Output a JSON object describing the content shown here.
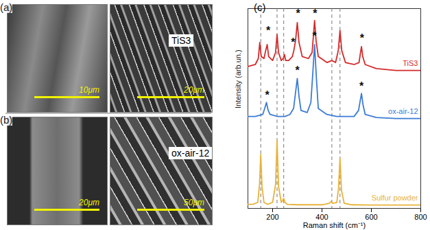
{
  "panels": [
    {
      "label": "(a)",
      "images": [
        {
          "scale_bar": "10μm"
        },
        {
          "scale_bar": "20μm",
          "caption": "TiS3"
        }
      ]
    },
    {
      "label": "(b)",
      "images": [
        {
          "scale_bar": "20μm"
        },
        {
          "scale_bar": "50μm",
          "caption": "ox-air-12"
        }
      ]
    }
  ],
  "chart_data": {
    "type": "line",
    "panel_label": "(c)",
    "x_label": "Raman shift (cm⁻¹)",
    "y_label": "Intensity (arb.un.)",
    "xlim": [
      100,
      800
    ],
    "xticks": [
      200,
      400,
      600,
      800
    ],
    "ylim": [
      0,
      10
    ],
    "yticks": [],
    "tick_labels": "x",
    "grid": false,
    "reference_lines": {
      "x": [
        152,
        218,
        245,
        440,
        473
      ],
      "line_style": "dashed"
    },
    "series": [
      {
        "name": "TiS3",
        "color": "#d42a2a",
        "x": [
          100,
          130,
          142,
          148,
          154,
          165,
          172,
          178,
          184,
          200,
          212,
          218,
          224,
          235,
          243,
          248,
          253,
          265,
          280,
          286,
          293,
          300,
          307,
          320,
          345,
          360,
          365,
          370,
          376,
          385,
          420,
          440,
          455,
          466,
          473,
          480,
          495,
          530,
          550,
          556,
          560,
          565,
          575,
          620,
          700,
          800
        ],
        "values": [
          7.1,
          7.2,
          7.5,
          8.3,
          7.6,
          7.5,
          7.9,
          8.2,
          7.6,
          7.4,
          7.8,
          8.7,
          7.8,
          7.4,
          7.5,
          7.7,
          7.4,
          7.4,
          7.6,
          7.9,
          8.4,
          9.3,
          8.3,
          7.6,
          7.5,
          7.8,
          8.6,
          9.4,
          8.4,
          7.6,
          7.3,
          7.4,
          7.3,
          7.9,
          8.9,
          7.9,
          7.3,
          7.2,
          7.3,
          7.8,
          8.1,
          7.6,
          7.2,
          7.0,
          6.9,
          6.9
        ],
        "annotations": [
          {
            "text": "*",
            "x": 182,
            "y": 8.9
          },
          {
            "text": "*",
            "x": 283,
            "y": 8.3
          },
          {
            "text": "*",
            "x": 303,
            "y": 9.75
          },
          {
            "text": "*",
            "x": 372,
            "y": 9.75
          },
          {
            "text": "*",
            "x": 562,
            "y": 8.5
          }
        ]
      },
      {
        "name": "ox-air-12",
        "color": "#3b7bd6",
        "x": [
          100,
          130,
          160,
          168,
          175,
          182,
          190,
          220,
          250,
          270,
          285,
          293,
          300,
          307,
          315,
          340,
          355,
          363,
          370,
          377,
          385,
          420,
          460,
          500,
          530,
          548,
          555,
          560,
          566,
          575,
          620,
          700,
          800
        ],
        "values": [
          4.6,
          4.6,
          4.7,
          5.0,
          5.3,
          4.9,
          4.7,
          4.6,
          4.6,
          4.7,
          5.0,
          5.8,
          6.5,
          5.6,
          4.9,
          4.8,
          5.3,
          6.8,
          8.2,
          6.6,
          5.0,
          4.7,
          4.6,
          4.6,
          4.6,
          4.9,
          5.4,
          5.75,
          5.2,
          4.7,
          4.55,
          4.5,
          4.5
        ],
        "annotations": [
          {
            "text": "*",
            "x": 178,
            "y": 5.65
          },
          {
            "text": "*",
            "x": 300,
            "y": 6.9
          },
          {
            "text": "*",
            "x": 370,
            "y": 8.6
          },
          {
            "text": "*",
            "x": 560,
            "y": 6.1
          }
        ]
      },
      {
        "name": "Sulfur powder",
        "color": "#e8b23a",
        "x": [
          100,
          120,
          140,
          147,
          152,
          157,
          165,
          180,
          200,
          212,
          218,
          224,
          235,
          240,
          245,
          250,
          260,
          300,
          350,
          400,
          430,
          437,
          444,
          460,
          467,
          473,
          479,
          490,
          520,
          600,
          700,
          800
        ],
        "values": [
          0.2,
          0.2,
          0.3,
          1.2,
          2.7,
          1.1,
          0.3,
          0.2,
          0.3,
          1.2,
          3.4,
          1.1,
          0.3,
          0.4,
          0.5,
          0.3,
          0.2,
          0.18,
          0.18,
          0.18,
          0.25,
          0.35,
          0.25,
          0.3,
          1.0,
          2.5,
          0.9,
          0.25,
          0.18,
          0.17,
          0.17,
          0.17
        ]
      }
    ]
  }
}
